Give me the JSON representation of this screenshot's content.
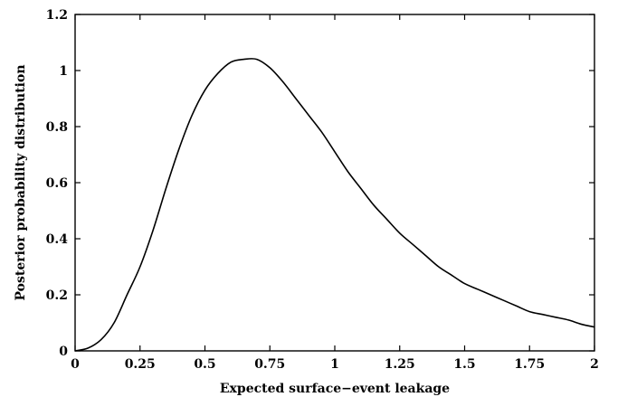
{
  "chart_data": {
    "type": "line",
    "title": "",
    "xlabel": "Expected surface−event leakage",
    "ylabel": "Posterior probability distribution",
    "xlim": [
      0,
      2
    ],
    "ylim": [
      0,
      1.2
    ],
    "xticks": [
      0,
      0.25,
      0.5,
      0.75,
      1,
      1.25,
      1.5,
      1.75,
      2
    ],
    "xtick_labels": [
      "0",
      "0.25",
      "0.5",
      "0.75",
      "1",
      "1.25",
      "1.5",
      "1.75",
      "2"
    ],
    "yticks": [
      0,
      0.2,
      0.4,
      0.6,
      0.8,
      1,
      1.2
    ],
    "ytick_labels": [
      "0",
      "0.2",
      "0.4",
      "0.6",
      "0.8",
      "1",
      "1.2"
    ],
    "grid": false,
    "line_color": "#000000",
    "series": [
      {
        "x": [
          0,
          0.05,
          0.1,
          0.15,
          0.2,
          0.25,
          0.3,
          0.35,
          0.4,
          0.45,
          0.5,
          0.55,
          0.6,
          0.65,
          0.7,
          0.75,
          0.8,
          0.85,
          0.9,
          0.95,
          1,
          1.05,
          1.1,
          1.15,
          1.2,
          1.25,
          1.3,
          1.35,
          1.4,
          1.45,
          1.5,
          1.55,
          1.6,
          1.65,
          1.7,
          1.75,
          1.8,
          1.85,
          1.9,
          1.95,
          2
        ],
        "y": [
          0,
          0.01,
          0.04,
          0.1,
          0.2,
          0.3,
          0.43,
          0.58,
          0.72,
          0.84,
          0.93,
          0.99,
          1.03,
          1.04,
          1.04,
          1.01,
          0.96,
          0.9,
          0.84,
          0.78,
          0.71,
          0.64,
          0.58,
          0.52,
          0.47,
          0.42,
          0.38,
          0.34,
          0.3,
          0.27,
          0.24,
          0.22,
          0.2,
          0.18,
          0.16,
          0.14,
          0.13,
          0.12,
          0.11,
          0.095,
          0.085
        ]
      }
    ]
  }
}
